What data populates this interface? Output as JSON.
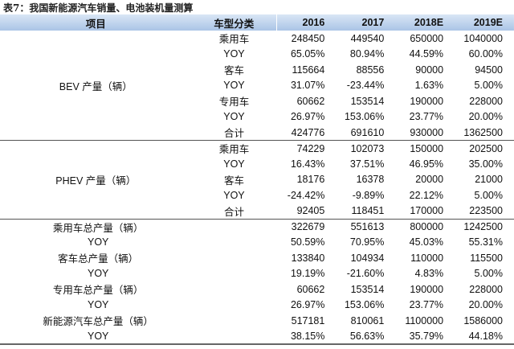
{
  "title": "表7：我国新能源汽车销量、电池装机量测算",
  "headers": [
    "项目",
    "车型分类",
    "2016",
    "2017",
    "2018E",
    "2019E"
  ],
  "groups": [
    {
      "label": "BEV 产量（辆）",
      "rows": [
        {
          "cat": "乘用车",
          "v": [
            "248450",
            "449540",
            "650000",
            "1040000"
          ]
        },
        {
          "cat": "YOY",
          "v": [
            "65.05%",
            "80.94%",
            "44.59%",
            "60.00%"
          ]
        },
        {
          "cat": "客车",
          "v": [
            "115664",
            "88556",
            "90000",
            "94500"
          ]
        },
        {
          "cat": "YOY",
          "v": [
            "31.07%",
            "-23.44%",
            "1.63%",
            "5.00%"
          ]
        },
        {
          "cat": "专用车",
          "v": [
            "60662",
            "153514",
            "190000",
            "228000"
          ]
        },
        {
          "cat": "YOY",
          "v": [
            "26.97%",
            "153.06%",
            "23.77%",
            "20.00%"
          ]
        },
        {
          "cat": "合计",
          "v": [
            "424776",
            "691610",
            "930000",
            "1362500"
          ]
        }
      ]
    },
    {
      "label": "PHEV 产量（辆）",
      "rows": [
        {
          "cat": "乘用车",
          "v": [
            "74229",
            "102073",
            "150000",
            "202500"
          ]
        },
        {
          "cat": "YOY",
          "v": [
            "16.43%",
            "37.51%",
            "46.95%",
            "35.00%"
          ]
        },
        {
          "cat": "客车",
          "v": [
            "18176",
            "16378",
            "20000",
            "21000"
          ]
        },
        {
          "cat": "YOY",
          "v": [
            "-24.42%",
            "-9.89%",
            "22.12%",
            "5.00%"
          ]
        },
        {
          "cat": "合计",
          "v": [
            "92405",
            "118451",
            "170000",
            "223500"
          ]
        }
      ]
    }
  ],
  "totals": [
    {
      "label": "乘用车总产量（辆）",
      "v": [
        "322679",
        "551613",
        "800000",
        "1242500"
      ]
    },
    {
      "label": "YOY",
      "v": [
        "50.59%",
        "70.95%",
        "45.03%",
        "55.31%"
      ]
    },
    {
      "label": "客车总产量（辆）",
      "v": [
        "133840",
        "104934",
        "110000",
        "115500"
      ]
    },
    {
      "label": "YOY",
      "v": [
        "19.19%",
        "-21.60%",
        "4.83%",
        "5.00%"
      ]
    },
    {
      "label": "专用车总产量（辆）",
      "v": [
        "60662",
        "153514",
        "190000",
        "228000"
      ]
    },
    {
      "label": "YOY",
      "v": [
        "26.97%",
        "153.06%",
        "23.77%",
        "20.00%"
      ]
    },
    {
      "label": "新能源汽车总产量（辆）",
      "v": [
        "517181",
        "810061",
        "1100000",
        "1586000"
      ]
    },
    {
      "label": "YOY",
      "v": [
        "38.15%",
        "56.63%",
        "35.79%",
        "44.18%"
      ]
    }
  ]
}
